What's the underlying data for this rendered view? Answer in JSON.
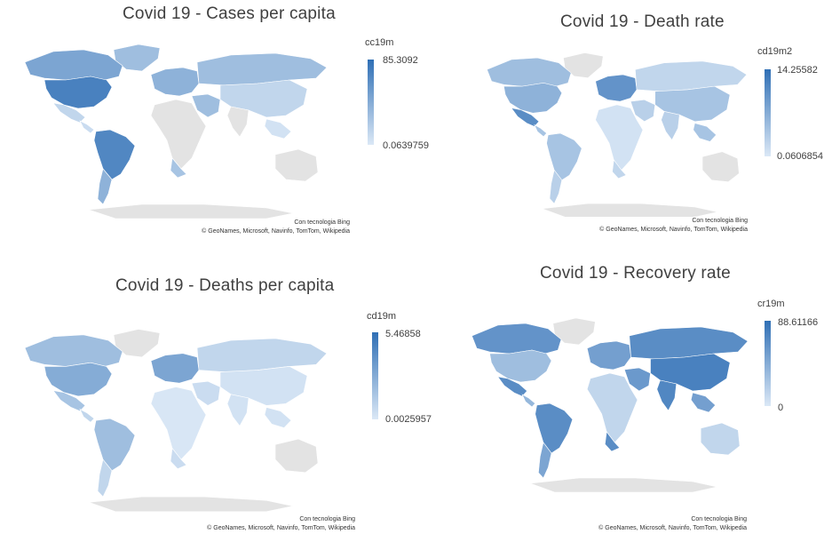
{
  "colors": {
    "no_data": "#e3e3e3",
    "scale_low": "#dbe8f6",
    "scale_high": "#2f6fb5",
    "text": "#404040"
  },
  "panels": [
    {
      "id": "cases-per-capita",
      "title": "Covid 19 -  Cases per capita",
      "legend": {
        "field": "cc19m",
        "max": "85.3092",
        "min": "0.0639759"
      },
      "credit_line1": "Con tecnologia Bing",
      "credit_line2": "© GeoNames, Microsoft, Navinfo, TomTom, Wikipedia",
      "shading": {
        "north_america": 0.55,
        "usa": 0.85,
        "greenland": 0.35,
        "mexico": 0.15,
        "central_america": 0.1,
        "south_america": 0.8,
        "argentina": 0.45,
        "europe": 0.45,
        "africa": 0.0,
        "south_africa": 0.3,
        "russia": 0.35,
        "middle_east": 0.35,
        "asia": 0.15,
        "india": 0.0,
        "australia": 0.0,
        "antarctica": 0.0,
        "se_asia": 0.05
      }
    },
    {
      "id": "death-rate",
      "title": "Covid 19 -  Death rate",
      "legend": {
        "field": "cd19m2",
        "max": "14.25582",
        "min": "0.0606854"
      },
      "credit_line1": "Con tecnologia Bing",
      "credit_line2": "© GeoNames, Microsoft, Navinfo, TomTom, Wikipedia",
      "shading": {
        "north_america": 0.35,
        "usa": 0.45,
        "greenland": 0.0,
        "mexico": 0.75,
        "central_america": 0.3,
        "south_america": 0.3,
        "argentina": 0.2,
        "europe": 0.7,
        "africa": 0.05,
        "south_africa": 0.15,
        "russia": 0.15,
        "middle_east": 0.2,
        "asia": 0.3,
        "india": 0.2,
        "australia": 0.0,
        "antarctica": 0.0,
        "se_asia": 0.3
      }
    },
    {
      "id": "deaths-per-capita",
      "title": "Covid 19 -  Deaths per capita",
      "legend": {
        "field": "cd19m",
        "max": "5.46858",
        "min": "0.0025957"
      },
      "credit_line1": "Con tecnologia Bing",
      "credit_line2": "© GeoNames, Microsoft, Navinfo, TomTom, Wikipedia",
      "shading": {
        "north_america": 0.35,
        "usa": 0.5,
        "greenland": 0.0,
        "mexico": 0.3,
        "central_america": 0.15,
        "south_america": 0.35,
        "argentina": 0.15,
        "europe": 0.55,
        "africa": 0.02,
        "south_africa": 0.1,
        "russia": 0.15,
        "middle_east": 0.1,
        "asia": 0.05,
        "india": 0.05,
        "australia": 0.0,
        "antarctica": 0.0,
        "se_asia": 0.05
      }
    },
    {
      "id": "recovery-rate",
      "title": "Covid 19 -  Recovery rate",
      "legend": {
        "field": "cr19m",
        "max": "88.61166",
        "min": "0"
      },
      "credit_line1": "Con tecnologia Bing",
      "credit_line2": "© GeoNames, Microsoft, Navinfo, TomTom, Wikipedia",
      "shading": {
        "north_america": 0.7,
        "usa": 0.35,
        "greenland": 0.0,
        "mexico": 0.75,
        "central_america": 0.4,
        "south_america": 0.75,
        "argentina": 0.55,
        "europe": 0.6,
        "africa": 0.15,
        "south_africa": 0.75,
        "russia": 0.75,
        "middle_east": 0.65,
        "asia": 0.85,
        "india": 0.8,
        "australia": 0.15,
        "antarctica": 0.0,
        "se_asia": 0.6
      }
    }
  ]
}
